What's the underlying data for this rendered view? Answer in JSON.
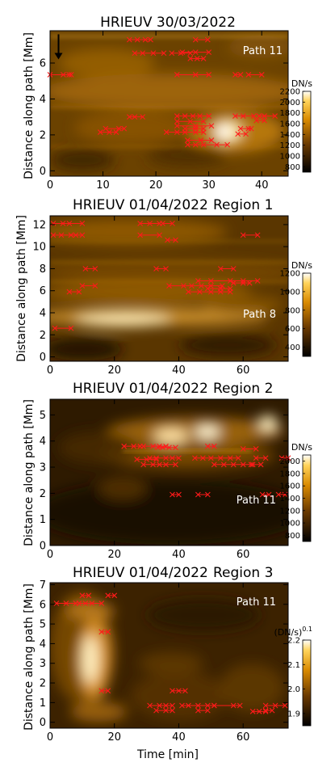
{
  "chart_data": [
    {
      "type": "heatmap",
      "title": "HRIEUV 30/03/2022",
      "ylabel": "Distance along path [Mm]",
      "xlabel": "",
      "path_label": "Path 11",
      "xlim": [
        0,
        45
      ],
      "ylim": [
        -0.3,
        7.8
      ],
      "xticks": [
        0,
        10,
        20,
        30,
        40
      ],
      "yticks": [
        0,
        2,
        4,
        6
      ],
      "colorbar": {
        "unit": "DN/s",
        "range": [
          700,
          2200
        ],
        "ticks": [
          800,
          1000,
          1200,
          1400,
          1600,
          1800,
          2000,
          2200
        ]
      },
      "arrow": {
        "x": 1.6,
        "y_from": 7.6,
        "y_to": 6.2
      },
      "tracks": [
        {
          "t": [
            15,
            16.5,
            18,
            19
          ],
          "y": 7.3
        },
        {
          "t": [
            27.5,
            29.8
          ],
          "y": 7.3
        },
        {
          "t": [
            0,
            2.5,
            3.6,
            4
          ],
          "y": 5.35
        },
        {
          "t": [
            16,
            17.5,
            19.5,
            21.5
          ],
          "y": 6.55
        },
        {
          "t": [
            23,
            24.7,
            26.5
          ],
          "y": 6.55
        },
        {
          "t": [
            25,
            27.5,
            30
          ],
          "y": 6.6
        },
        {
          "t": [
            26.5,
            27.8,
            29
          ],
          "y": 6.25
        },
        {
          "t": [
            24,
            27.5,
            30
          ],
          "y": 5.35
        },
        {
          "t": [
            35,
            36
          ],
          "y": 5.35
        },
        {
          "t": [
            37.5,
            40
          ],
          "y": 5.35
        },
        {
          "t": [
            10.5,
            13,
            14
          ],
          "y": 2.35
        },
        {
          "t": [
            9.5,
            11.2,
            12.5
          ],
          "y": 2.15
        },
        {
          "t": [
            15,
            16,
            17.5
          ],
          "y": 3.0
        },
        {
          "t": [
            22,
            24,
            25.5,
            27.5,
            29
          ],
          "y": 2.15
        },
        {
          "t": [
            24,
            26.5,
            29
          ],
          "y": 2.75
        },
        {
          "t": [
            24,
            25.5,
            27,
            28.3,
            30
          ],
          "y": 3.05
        },
        {
          "t": [
            24,
            27.5,
            30.5
          ],
          "y": 2.5
        },
        {
          "t": [
            25.5,
            27.5,
            29
          ],
          "y": 2.35
        },
        {
          "t": [
            26,
            28.5,
            30.5
          ],
          "y": 1.7
        },
        {
          "t": [
            26,
            27.5,
            29,
            31.5,
            33.5
          ],
          "y": 1.45
        },
        {
          "t": [
            35,
            36.5,
            38.5
          ],
          "y": 3.05
        },
        {
          "t": [
            36,
            37.5,
            38
          ],
          "y": 2.35
        },
        {
          "t": [
            35.5,
            37
          ],
          "y": 2.05
        },
        {
          "t": [
            39.5,
            40.5,
            42.5
          ],
          "y": 3.05
        },
        {
          "t": [
            39,
            40.5
          ],
          "y": 2.8
        }
      ]
    },
    {
      "type": "heatmap",
      "title": "HRIEUV 01/04/2022",
      "region": "Region 1",
      "ylabel": "Distance along path [Mm]",
      "xlabel": "",
      "path_label": "Path 8",
      "xlim": [
        0,
        74
      ],
      "ylim": [
        -0.4,
        12.8
      ],
      "xticks": [
        0,
        20,
        40,
        60
      ],
      "yticks": [
        0,
        2,
        4,
        6,
        8,
        10,
        12
      ],
      "colorbar": {
        "unit": "DN/s",
        "range": [
          300,
          1200
        ],
        "ticks": [
          400,
          600,
          800,
          1000,
          1200
        ]
      },
      "tracks": [
        {
          "t": [
            1,
            4,
            6,
            10
          ],
          "y": 12.1
        },
        {
          "t": [
            1,
            3.5,
            6.5,
            8,
            10
          ],
          "y": 11.05
        },
        {
          "t": [
            28,
            31,
            34
          ],
          "y": 12.1
        },
        {
          "t": [
            35,
            38
          ],
          "y": 12.1
        },
        {
          "t": [
            28,
            34
          ],
          "y": 11.05
        },
        {
          "t": [
            36.5,
            39
          ],
          "y": 10.6
        },
        {
          "t": [
            60,
            64.5
          ],
          "y": 11.05
        },
        {
          "t": [
            11,
            14
          ],
          "y": 8.0
        },
        {
          "t": [
            33,
            36
          ],
          "y": 8.0
        },
        {
          "t": [
            53,
            57
          ],
          "y": 8.0
        },
        {
          "t": [
            6,
            9
          ],
          "y": 5.9
        },
        {
          "t": [
            10,
            14
          ],
          "y": 6.45
        },
        {
          "t": [
            37,
            41.5,
            44,
            47,
            50,
            53.5
          ],
          "y": 6.45
        },
        {
          "t": [
            46,
            50,
            56,
            60,
            64.5
          ],
          "y": 6.9
        },
        {
          "t": [
            43,
            46.5,
            50,
            53,
            56
          ],
          "y": 5.9
        },
        {
          "t": [
            49,
            53,
            56
          ],
          "y": 6.2
        },
        {
          "t": [
            57,
            60,
            62
          ],
          "y": 6.7
        },
        {
          "t": [
            1.5,
            6.5
          ],
          "y": 2.6
        }
      ]
    },
    {
      "type": "heatmap",
      "title": "HRIEUV 01/04/2022",
      "region": "Region 2",
      "ylabel": "Distance along path [Mm]",
      "xlabel": "",
      "path_label": "Path 11",
      "xlim": [
        0,
        74
      ],
      "ylim": [
        0,
        5.6
      ],
      "xticks": [
        0,
        20,
        40,
        60
      ],
      "yticks": [
        0,
        1,
        2,
        3,
        4,
        5
      ],
      "colorbar": {
        "unit": "DN/s",
        "range": [
          700,
          2100
        ],
        "ticks": [
          800,
          1000,
          1200,
          1400,
          1600,
          1800,
          2000
        ]
      },
      "tracks": [
        {
          "t": [
            23,
            26,
            28
          ],
          "y": 3.8
        },
        {
          "t": [
            29,
            32,
            34,
            36
          ],
          "y": 3.8
        },
        {
          "t": [
            33.5,
            35,
            37,
            39
          ],
          "y": 3.75
        },
        {
          "t": [
            49,
            51
          ],
          "y": 3.8
        },
        {
          "t": [
            60,
            64
          ],
          "y": 3.7
        },
        {
          "t": [
            31,
            33,
            36,
            38,
            40
          ],
          "y": 3.35
        },
        {
          "t": [
            27,
            30,
            33
          ],
          "y": 3.3
        },
        {
          "t": [
            29,
            32,
            34,
            36,
            39
          ],
          "y": 3.1
        },
        {
          "t": [
            45,
            47.5,
            50,
            53,
            56,
            58.5
          ],
          "y": 3.35
        },
        {
          "t": [
            51,
            54,
            57,
            60,
            63
          ],
          "y": 3.1
        },
        {
          "t": [
            64,
            67
          ],
          "y": 3.35
        },
        {
          "t": [
            62.5,
            65.5
          ],
          "y": 3.1
        },
        {
          "t": [
            38,
            40
          ],
          "y": 1.95
        },
        {
          "t": [
            46,
            49
          ],
          "y": 1.95
        },
        {
          "t": [
            66,
            68
          ],
          "y": 1.95
        },
        {
          "t": [
            71,
            73
          ],
          "y": 1.95
        },
        {
          "t": [
            72,
            74
          ],
          "y": 3.35
        }
      ]
    },
    {
      "type": "heatmap",
      "title": "HRIEUV 01/04/2022",
      "region": "Region 3",
      "ylabel": "Distance along path [Mm]",
      "xlabel": "Time [min]",
      "path_label": "Path 11",
      "xlim": [
        0,
        74
      ],
      "ylim": [
        -0.3,
        7.1
      ],
      "xticks": [
        0,
        20,
        40,
        60
      ],
      "yticks": [
        0,
        1,
        2,
        3,
        4,
        5,
        6,
        7
      ],
      "colorbar": {
        "unit": "(DN/s)",
        "exponent": "0.1",
        "range": [
          1.85,
          2.2
        ],
        "ticks": [
          1.9,
          2.0,
          2.1,
          2.2
        ],
        "labels": [
          "1.9",
          "2.0",
          "2.1",
          "2.2"
        ]
      },
      "tracks": [
        {
          "t": [
            10,
            12
          ],
          "y": 6.45
        },
        {
          "t": [
            18,
            20
          ],
          "y": 6.45
        },
        {
          "t": [
            2,
            5,
            8
          ],
          "y": 6.05
        },
        {
          "t": [
            9,
            11,
            13,
            16
          ],
          "y": 6.05
        },
        {
          "t": [
            16,
            18
          ],
          "y": 4.6
        },
        {
          "t": [
            16,
            18
          ],
          "y": 1.6
        },
        {
          "t": [
            38,
            40,
            42
          ],
          "y": 1.6
        },
        {
          "t": [
            31,
            34,
            36,
            38
          ],
          "y": 0.85
        },
        {
          "t": [
            41,
            43,
            46,
            49,
            51
          ],
          "y": 0.85
        },
        {
          "t": [
            51,
            57,
            59
          ],
          "y": 0.85
        },
        {
          "t": [
            33,
            36,
            38
          ],
          "y": 0.6
        },
        {
          "t": [
            46,
            49
          ],
          "y": 0.6
        },
        {
          "t": [
            63,
            65,
            67
          ],
          "y": 0.55
        },
        {
          "t": [
            67,
            70,
            73
          ],
          "y": 0.85
        },
        {
          "t": [
            67,
            69
          ],
          "y": 0.6
        }
      ]
    }
  ]
}
